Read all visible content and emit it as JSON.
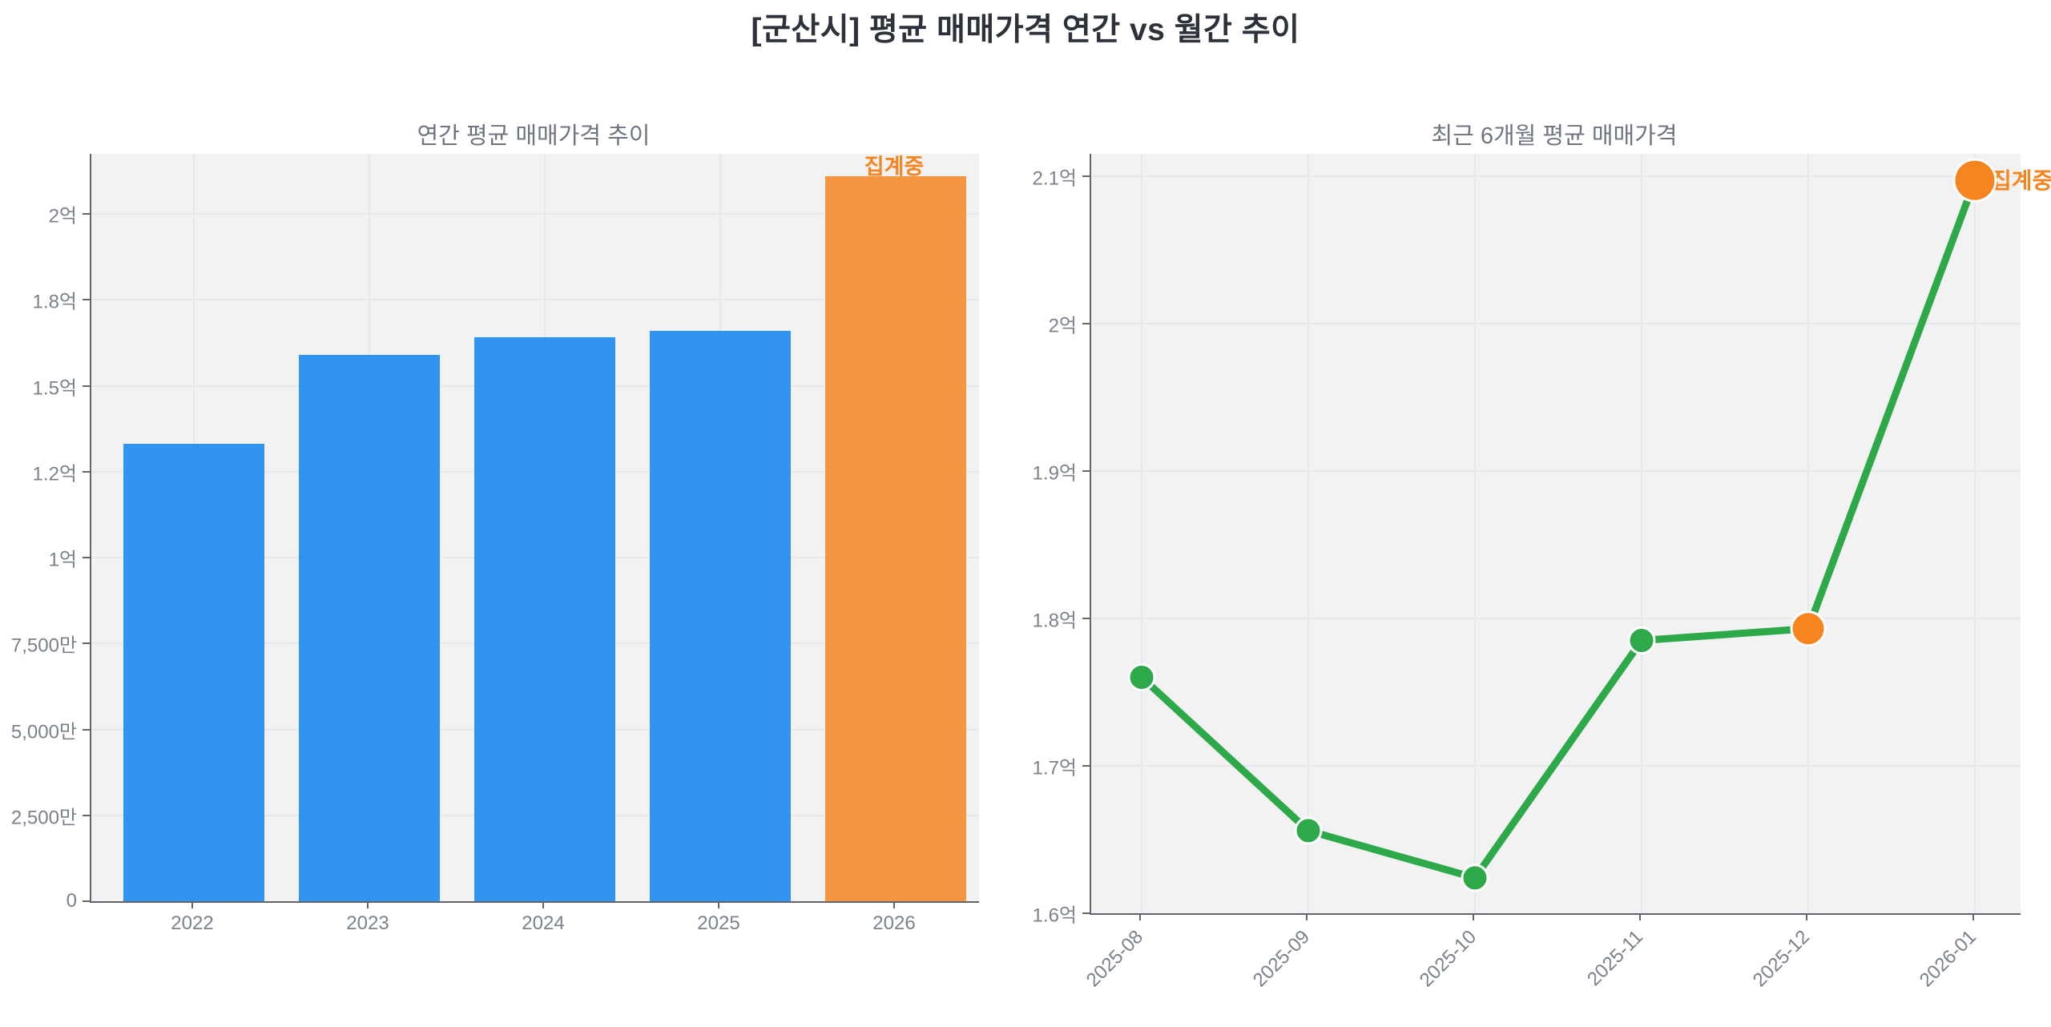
{
  "title": "[군산시] 평균 매매가격 연간 vs 월간 추이",
  "colors": {
    "bar_blue": "#3194f0",
    "bar_orange": "#f79640",
    "marker_orange": "#f6851f",
    "line_green": "#2da94a",
    "annotation_orange": "#f6851f",
    "plot_background": "#f2f2f3",
    "grid": "#e7e8eb",
    "axis_spine": "#62666c",
    "tick_text": "#7b828c",
    "title_text": "#2c313a",
    "subtitle_text": "#6e7580"
  },
  "chart_data": [
    {
      "type": "bar",
      "title": "연간 평균 매매가격 추이",
      "unit": "억원",
      "categories": [
        "2022",
        "2023",
        "2024",
        "2025",
        "2026"
      ],
      "values": [
        1.33,
        1.59,
        1.64,
        1.66,
        2.11
      ],
      "bar_color_keys": [
        "bar_blue",
        "bar_blue",
        "bar_blue",
        "bar_blue",
        "bar_orange"
      ],
      "annotation": {
        "text": "집계중",
        "category": "2026"
      },
      "ylim": [
        0,
        2.175
      ],
      "yticks": [
        {
          "value": 0,
          "label": "0"
        },
        {
          "value": 0.25,
          "label": "2,500만"
        },
        {
          "value": 0.5,
          "label": "5,000만"
        },
        {
          "value": 0.75,
          "label": "7,500만"
        },
        {
          "value": 1.0,
          "label": "1억"
        },
        {
          "value": 1.25,
          "label": "1.2억"
        },
        {
          "value": 1.5,
          "label": "1.5억"
        },
        {
          "value": 1.75,
          "label": "1.8억"
        },
        {
          "value": 2.0,
          "label": "2억"
        }
      ],
      "grid": true,
      "legend": "none"
    },
    {
      "type": "line",
      "title": "최근 6개월 평균 매매가격",
      "unit": "억원",
      "x": [
        "2025-08",
        "2025-09",
        "2025-10",
        "2025-11",
        "2025-12",
        "2026-01"
      ],
      "values": [
        1.76,
        1.656,
        1.624,
        1.785,
        1.793,
        2.097
      ],
      "point_color_keys": [
        "line_green",
        "line_green",
        "line_green",
        "line_green",
        "marker_orange",
        "marker_orange"
      ],
      "point_radii": [
        16,
        16,
        16,
        16,
        21,
        26
      ],
      "annotation": {
        "text": "집계중",
        "x": "2026-01"
      },
      "ylim": [
        1.6,
        2.115
      ],
      "yticks": [
        {
          "value": 1.6,
          "label": "1.6억"
        },
        {
          "value": 1.7,
          "label": "1.7억"
        },
        {
          "value": 1.8,
          "label": "1.8억"
        },
        {
          "value": 1.9,
          "label": "1.9억"
        },
        {
          "value": 2.0,
          "label": "2억"
        },
        {
          "value": 2.1,
          "label": "2.1억"
        }
      ],
      "grid": true,
      "legend": "none"
    }
  ]
}
